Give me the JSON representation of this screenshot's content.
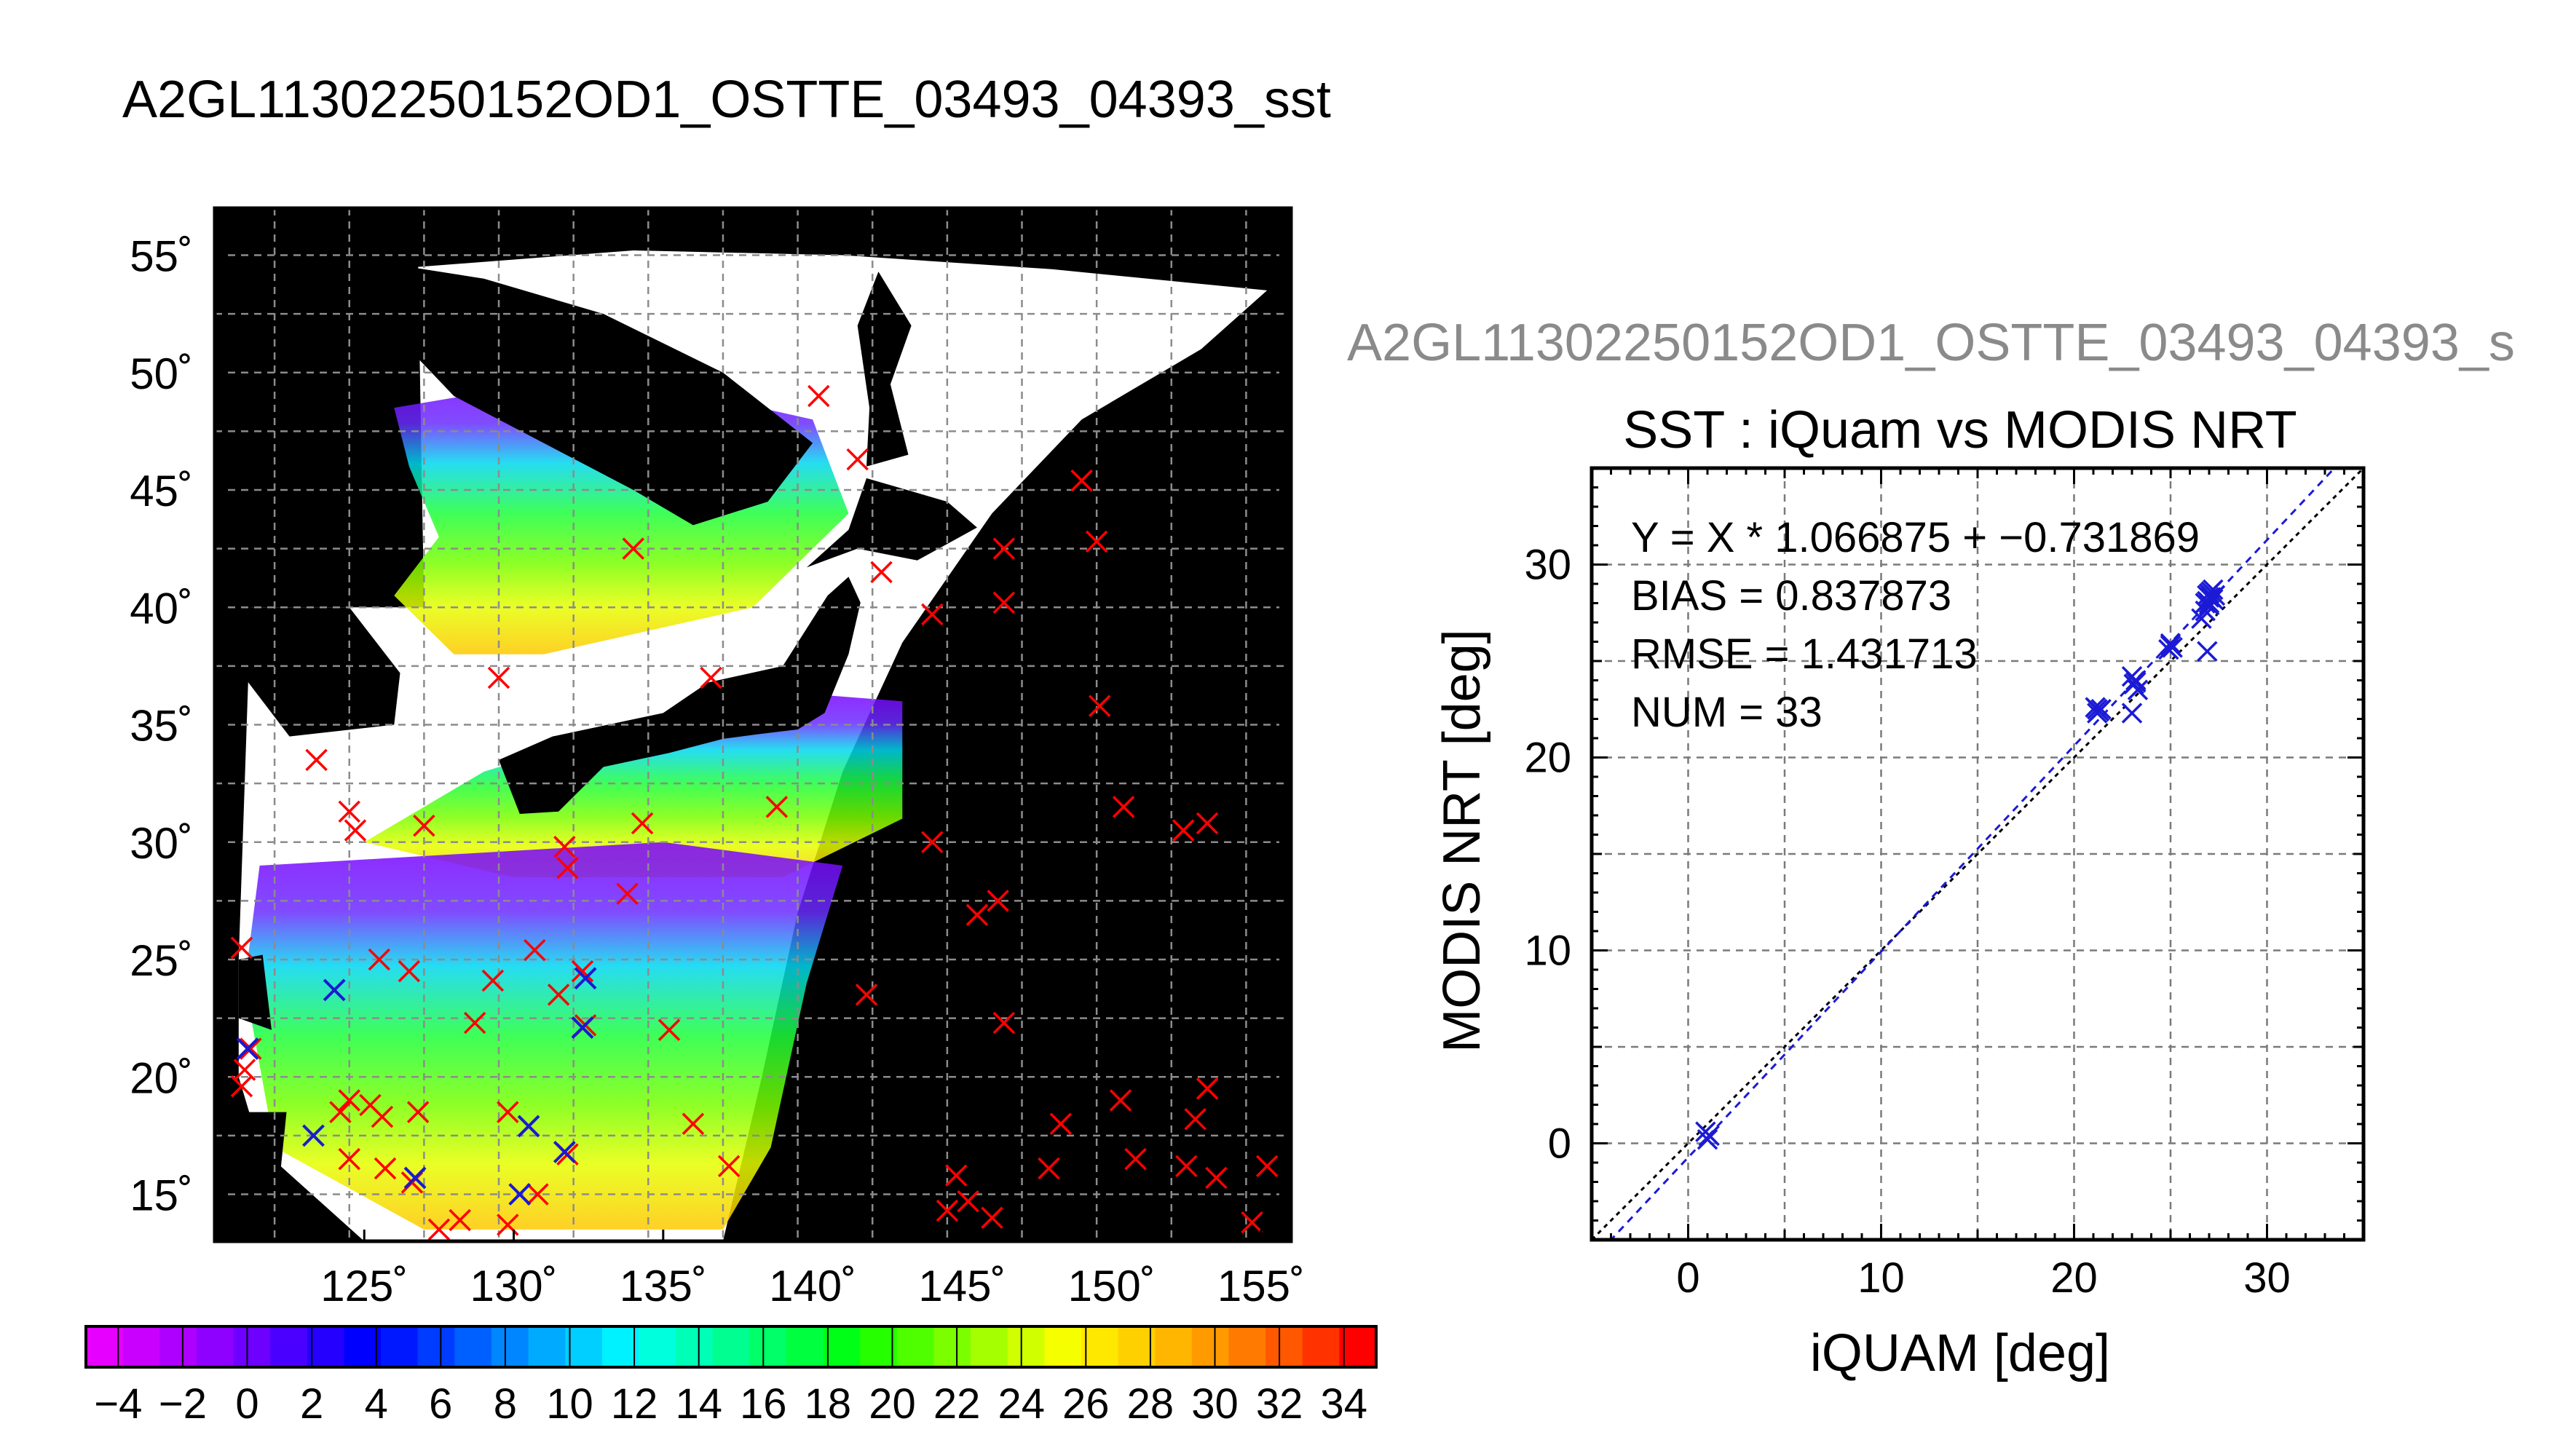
{
  "title": "A2GL11302250152OD1_OSTTE_03493_04393_sst",
  "map": {
    "lat_labels": [
      "55˚",
      "50˚",
      "45˚",
      "40˚",
      "35˚",
      "30˚",
      "25˚",
      "20˚",
      "15˚"
    ],
    "lat_values": [
      55,
      50,
      45,
      40,
      35,
      30,
      25,
      20,
      15
    ],
    "lon_labels": [
      "125˚",
      "130˚",
      "135˚",
      "140˚",
      "145˚",
      "150˚",
      "155˚"
    ],
    "lon_values": [
      125,
      130,
      135,
      140,
      145,
      150,
      155
    ],
    "lon_range": [
      120,
      156
    ],
    "lat_range": [
      13,
      57
    ],
    "colors": {
      "land": "#000000",
      "cloud": "#ffffff",
      "grid": "#8c8c8c",
      "match_marker": "#ff0000",
      "used_marker": "#1a1ad0"
    },
    "red_markers": [
      [
        140.2,
        49
      ],
      [
        141.5,
        46.3
      ],
      [
        149,
        45.4
      ],
      [
        149.5,
        42.8
      ],
      [
        134,
        42.5
      ],
      [
        146.4,
        42.5
      ],
      [
        142.3,
        41.5
      ],
      [
        144,
        39.7
      ],
      [
        146.4,
        40.2
      ],
      [
        136.6,
        37
      ],
      [
        129.5,
        37
      ],
      [
        149.6,
        35.8
      ],
      [
        123.4,
        33.5
      ],
      [
        124.5,
        31.3
      ],
      [
        124.7,
        30.5
      ],
      [
        127,
        30.7
      ],
      [
        138.8,
        31.5
      ],
      [
        134.3,
        30.8
      ],
      [
        131.7,
        29.8
      ],
      [
        131.8,
        28.9
      ],
      [
        144,
        30
      ],
      [
        150.4,
        31.5
      ],
      [
        152.4,
        30.5
      ],
      [
        153.2,
        30.8
      ],
      [
        133.8,
        27.8
      ],
      [
        146.2,
        27.5
      ],
      [
        145.5,
        26.9
      ],
      [
        120.9,
        25.5
      ],
      [
        125.5,
        25
      ],
      [
        126.5,
        24.5
      ],
      [
        129.3,
        24.1
      ],
      [
        130.7,
        25.4
      ],
      [
        132.3,
        24.5
      ],
      [
        131.5,
        23.5
      ],
      [
        141.8,
        23.5
      ],
      [
        146.4,
        22.3
      ],
      [
        128.7,
        22.3
      ],
      [
        135.2,
        22
      ],
      [
        132.4,
        22.2
      ],
      [
        121.2,
        21.2
      ],
      [
        121,
        20.3
      ],
      [
        120.9,
        19.6
      ],
      [
        124.5,
        19
      ],
      [
        125.2,
        18.8
      ],
      [
        125.6,
        18.3
      ],
      [
        124.2,
        18.5
      ],
      [
        126.8,
        18.5
      ],
      [
        129.8,
        18.5
      ],
      [
        136,
        18
      ],
      [
        148.3,
        18
      ],
      [
        152.8,
        18.2
      ],
      [
        153.2,
        19.5
      ],
      [
        155.2,
        16.2
      ],
      [
        150.8,
        16.5
      ],
      [
        152.5,
        16.2
      ],
      [
        153.5,
        15.7
      ],
      [
        144.8,
        15.8
      ],
      [
        145.2,
        14.7
      ],
      [
        147.9,
        16.1
      ],
      [
        126.6,
        15.5
      ],
      [
        125.7,
        16.1
      ],
      [
        124.5,
        16.5
      ],
      [
        128.2,
        13.9
      ],
      [
        127.5,
        13.5
      ],
      [
        130.8,
        15
      ],
      [
        129.8,
        13.7
      ],
      [
        144.5,
        14.3
      ],
      [
        146,
        14
      ],
      [
        137.2,
        16.2
      ],
      [
        131.8,
        16.7
      ],
      [
        154.7,
        13.8
      ],
      [
        150.3,
        19
      ]
    ],
    "blue_markers": [
      [
        124,
        23.7
      ],
      [
        121.1,
        21.2
      ],
      [
        130.5,
        17.9
      ],
      [
        131.7,
        16.8
      ],
      [
        132.3,
        22.1
      ],
      [
        132.4,
        24.2
      ],
      [
        130.2,
        15
      ],
      [
        123.3,
        17.5
      ],
      [
        126.7,
        15.7
      ]
    ]
  },
  "colorbar": {
    "tick_labels": [
      "−4",
      "−2",
      "0",
      "2",
      "4",
      "6",
      "8",
      "10",
      "12",
      "14",
      "16",
      "18",
      "20",
      "22",
      "24",
      "26",
      "28",
      "30",
      "32",
      "34"
    ],
    "range": [
      -5,
      35
    ],
    "colors": [
      "#e600ff",
      "#ca00ff",
      "#ad00ff",
      "#8e00ff",
      "#6e00ff",
      "#4a00ff",
      "#2500ff",
      "#0000ff",
      "#0018ff",
      "#003cff",
      "#0060ff",
      "#0087ff",
      "#00abff",
      "#00cfff",
      "#00f1ff",
      "#00ffdd",
      "#00ffb6",
      "#00ff90",
      "#00ff68",
      "#00ff3f",
      "#00ff16",
      "#25ff00",
      "#4fff00",
      "#7bff00",
      "#a6ff00",
      "#d0ff00",
      "#f6ff00",
      "#ffe800",
      "#ffd000",
      "#ffb600",
      "#ff9a00",
      "#ff7a00",
      "#ff5800",
      "#ff3200",
      "#ff0000"
    ]
  },
  "scatter_file_title": "A2GL11302250152OD1_OSTTE_03493_04393_s",
  "chart_data": {
    "type": "scatter",
    "title": "SST : iQuam vs MODIS NRT",
    "xlabel": "iQUAM [deg]",
    "ylabel": "MODIS NRT [deg]",
    "xlim": [
      -5,
      35
    ],
    "ylim": [
      -5,
      35
    ],
    "xticks": [
      0,
      10,
      20,
      30
    ],
    "yticks": [
      0,
      10,
      20,
      30
    ],
    "grid": true,
    "stats": [
      "Y = X * 1.066875 + −0.731869",
      "BIAS = 0.837873",
      "RMSE = 1.431713",
      "NUM = 33"
    ],
    "regression": {
      "slope": 1.066875,
      "intercept": -0.731869
    },
    "points": [
      [
        1.1,
        0.4
      ],
      [
        1.0,
        0.2
      ],
      [
        0.9,
        0.6
      ],
      [
        21.2,
        22.5
      ],
      [
        21.3,
        22.4
      ],
      [
        21.1,
        22.6
      ],
      [
        21.4,
        22.5
      ],
      [
        23.0,
        22.3
      ],
      [
        23.0,
        24.2
      ],
      [
        23.1,
        23.8
      ],
      [
        23.3,
        23.5
      ],
      [
        23.2,
        24.0
      ],
      [
        24.9,
        25.6
      ],
      [
        25.0,
        25.9
      ],
      [
        25.1,
        25.7
      ],
      [
        26.6,
        27.2
      ],
      [
        26.8,
        27.6
      ],
      [
        27.0,
        27.9
      ],
      [
        26.9,
        28.1
      ],
      [
        27.1,
        28.3
      ],
      [
        27.2,
        28.2
      ],
      [
        27.0,
        28.5
      ],
      [
        27.3,
        28.4
      ],
      [
        26.9,
        25.5
      ],
      [
        27.0,
        28.0
      ],
      [
        27.1,
        28.6
      ],
      [
        26.8,
        28.0
      ],
      [
        27.2,
        28.7
      ],
      [
        21.2,
        22.3
      ],
      [
        23.2,
        23.9
      ],
      [
        25.0,
        25.8
      ],
      [
        27.0,
        28.3
      ],
      [
        26.9,
        28.4
      ]
    ],
    "colors": {
      "points": "#1b1bd6",
      "regression_line": "#1b1bd6",
      "identity_line": "#000000",
      "grid": "#7a7a7a"
    }
  }
}
